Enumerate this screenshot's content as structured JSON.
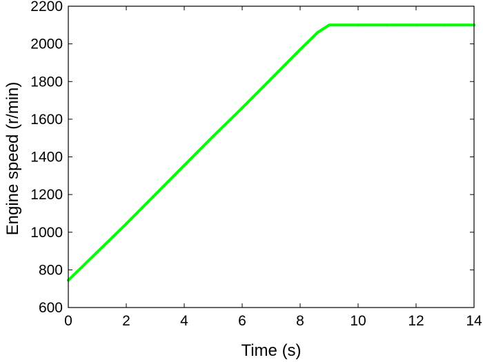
{
  "chart_data": {
    "type": "line",
    "title": "",
    "xlabel": "Time (s)",
    "ylabel": "Engine speed (r/min)",
    "xlim": [
      0,
      14
    ],
    "ylim": [
      600,
      2200
    ],
    "xticks": [
      0,
      2,
      4,
      6,
      8,
      10,
      12,
      14
    ],
    "yticks": [
      600,
      800,
      1000,
      1200,
      1400,
      1600,
      1800,
      2000,
      2200
    ],
    "grid": false,
    "legend": "none",
    "series": [
      {
        "color": "#00ff00",
        "x": [
          0,
          1,
          2,
          3,
          4,
          5,
          6,
          7,
          8,
          8.6,
          9.0,
          10,
          11,
          12,
          13,
          14
        ],
        "y": [
          745,
          895,
          1045,
          1200,
          1355,
          1510,
          1660,
          1815,
          1970,
          2060,
          2100,
          2100,
          2100,
          2100,
          2100,
          2100
        ]
      }
    ]
  }
}
